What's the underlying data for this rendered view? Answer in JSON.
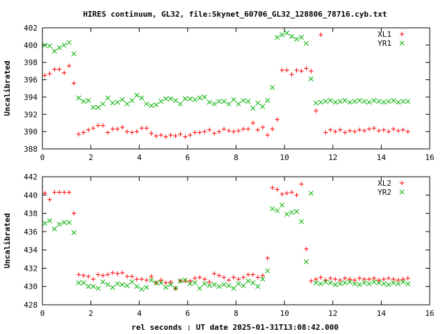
{
  "title": "HIRES continuum, GL32, file:Skynet_60706_GL32_128806_78716.cyb.txt",
  "xlabel": "rel seconds : UT date 2025-01-31T13:08:42.000",
  "colors": {
    "red": "#ff0000",
    "green": "#00b000",
    "frame": "#000000"
  },
  "chart_data": [
    {
      "type": "scatter",
      "ylabel": "Uncalibrated",
      "xlim": [
        0,
        16
      ],
      "ylim": [
        388,
        402
      ],
      "xticks": [
        0,
        2,
        4,
        6,
        8,
        10,
        12,
        14,
        16
      ],
      "yticks": [
        388,
        390,
        392,
        394,
        396,
        398,
        400,
        402
      ],
      "legend_position": "top-right",
      "series": [
        {
          "name": "XL1",
          "marker": "plus",
          "color": "#ff0000",
          "x": [
            0.1,
            0.3,
            0.5,
            0.7,
            0.9,
            1.1,
            1.3,
            1.5,
            1.7,
            1.9,
            2.1,
            2.3,
            2.5,
            2.7,
            2.9,
            3.1,
            3.3,
            3.5,
            3.7,
            3.9,
            4.1,
            4.3,
            4.5,
            4.7,
            4.9,
            5.1,
            5.3,
            5.5,
            5.7,
            5.9,
            6.1,
            6.3,
            6.5,
            6.7,
            6.9,
            7.1,
            7.3,
            7.5,
            7.7,
            7.9,
            8.1,
            8.3,
            8.5,
            8.7,
            8.9,
            9.1,
            9.3,
            9.5,
            9.7,
            9.9,
            10.1,
            10.3,
            10.5,
            10.7,
            10.9,
            11.1,
            11.3,
            11.5,
            11.7,
            11.9,
            12.1,
            12.3,
            12.5,
            12.7,
            12.9,
            13.1,
            13.3,
            13.5,
            13.7,
            13.9,
            14.1,
            14.3,
            14.5,
            14.7,
            14.9,
            15.1
          ],
          "y": [
            396.5,
            396.7,
            397.2,
            397.2,
            396.8,
            397.6,
            395.6,
            389.7,
            389.9,
            390.2,
            390.4,
            390.7,
            390.7,
            389.9,
            390.3,
            390.3,
            390.5,
            390.0,
            389.9,
            390.0,
            390.4,
            390.4,
            389.8,
            389.5,
            389.6,
            389.4,
            389.6,
            389.5,
            389.7,
            389.4,
            389.6,
            389.9,
            389.9,
            390.0,
            390.2,
            389.8,
            390.0,
            390.3,
            390.1,
            390.0,
            390.1,
            390.3,
            390.3,
            391.0,
            390.2,
            390.5,
            389.6,
            390.3,
            391.4,
            397.1,
            397.1,
            396.6,
            397.1,
            397.0,
            397.3,
            397.0,
            392.4,
            401.2,
            389.9,
            390.2,
            390.0,
            390.2,
            389.9,
            390.1,
            390.0,
            390.2,
            390.1,
            390.3,
            390.4,
            390.1,
            390.2,
            390.0,
            390.3,
            390.1,
            390.2,
            390.0
          ]
        },
        {
          "name": "YR1",
          "marker": "x",
          "color": "#00b000",
          "x": [
            0.1,
            0.3,
            0.5,
            0.7,
            0.9,
            1.1,
            1.3,
            1.5,
            1.7,
            1.9,
            2.1,
            2.3,
            2.5,
            2.7,
            2.9,
            3.1,
            3.3,
            3.5,
            3.7,
            3.9,
            4.1,
            4.3,
            4.5,
            4.7,
            4.9,
            5.1,
            5.3,
            5.5,
            5.7,
            5.9,
            6.1,
            6.3,
            6.5,
            6.7,
            6.9,
            7.1,
            7.3,
            7.5,
            7.7,
            7.9,
            8.1,
            8.3,
            8.5,
            8.7,
            8.9,
            9.1,
            9.3,
            9.5,
            9.7,
            9.9,
            10.1,
            10.3,
            10.5,
            10.7,
            10.9,
            11.1,
            11.3,
            11.5,
            11.7,
            11.9,
            12.1,
            12.3,
            12.5,
            12.7,
            12.9,
            13.1,
            13.3,
            13.5,
            13.7,
            13.9,
            14.1,
            14.3,
            14.5,
            14.7,
            14.9,
            15.1
          ],
          "y": [
            400.0,
            399.9,
            399.3,
            399.7,
            400.0,
            400.3,
            399.0,
            393.9,
            393.5,
            393.6,
            392.8,
            392.8,
            393.2,
            393.9,
            393.3,
            393.4,
            393.7,
            393.2,
            393.6,
            394.2,
            393.9,
            393.2,
            393.0,
            393.1,
            393.5,
            393.8,
            393.8,
            393.6,
            393.2,
            393.8,
            393.8,
            393.7,
            393.9,
            394.0,
            393.4,
            393.2,
            393.5,
            393.5,
            393.2,
            393.7,
            393.2,
            393.6,
            393.5,
            392.7,
            393.3,
            392.9,
            393.6,
            395.1,
            400.9,
            401.2,
            401.4,
            401.0,
            400.7,
            400.9,
            400.2,
            396.1,
            393.3,
            393.4,
            393.5,
            393.6,
            393.4,
            393.5,
            393.6,
            393.4,
            393.5,
            393.6,
            393.5,
            393.4,
            393.6,
            393.5,
            393.4,
            393.5,
            393.6,
            393.4,
            393.5,
            393.5
          ]
        }
      ]
    },
    {
      "type": "scatter",
      "ylabel": "Uncalibrated",
      "xlim": [
        0,
        16
      ],
      "ylim": [
        428,
        442
      ],
      "xticks": [
        0,
        2,
        4,
        6,
        8,
        10,
        12,
        14,
        16
      ],
      "yticks": [
        428,
        430,
        432,
        434,
        436,
        438,
        440,
        442
      ],
      "legend_position": "top-right",
      "series": [
        {
          "name": "XL2",
          "marker": "plus",
          "color": "#ff0000",
          "x": [
            0.1,
            0.3,
            0.5,
            0.7,
            0.9,
            1.1,
            1.3,
            1.5,
            1.7,
            1.9,
            2.1,
            2.3,
            2.5,
            2.7,
            2.9,
            3.1,
            3.3,
            3.5,
            3.7,
            3.9,
            4.1,
            4.3,
            4.5,
            4.7,
            4.9,
            5.1,
            5.3,
            5.5,
            5.7,
            5.9,
            6.1,
            6.3,
            6.5,
            6.7,
            6.9,
            7.1,
            7.3,
            7.5,
            7.7,
            7.9,
            8.1,
            8.3,
            8.5,
            8.7,
            8.9,
            9.1,
            9.3,
            9.5,
            9.7,
            9.9,
            10.1,
            10.3,
            10.5,
            10.7,
            10.9,
            11.1,
            11.3,
            11.5,
            11.7,
            11.9,
            12.1,
            12.3,
            12.5,
            12.7,
            12.9,
            13.1,
            13.3,
            13.5,
            13.7,
            13.9,
            14.1,
            14.3,
            14.5,
            14.7,
            14.9,
            15.1
          ],
          "y": [
            440.2,
            439.5,
            440.3,
            440.3,
            440.3,
            440.3,
            438.0,
            431.3,
            431.2,
            431.1,
            430.8,
            431.3,
            431.2,
            431.3,
            431.5,
            431.4,
            431.5,
            431.1,
            431.1,
            430.8,
            430.8,
            430.7,
            431.1,
            430.4,
            430.7,
            430.4,
            430.5,
            429.8,
            430.6,
            430.6,
            430.6,
            430.9,
            431.0,
            430.8,
            430.5,
            431.4,
            431.2,
            431.0,
            430.7,
            431.0,
            430.8,
            431.0,
            431.3,
            431.3,
            431.0,
            431.2,
            433.1,
            440.8,
            440.6,
            440.1,
            440.2,
            440.3,
            440.0,
            441.2,
            434.1,
            430.6,
            430.8,
            431.0,
            430.7,
            430.9,
            430.8,
            430.7,
            430.9,
            430.8,
            430.7,
            430.9,
            430.8,
            430.8,
            430.9,
            430.7,
            430.8,
            430.9,
            430.8,
            430.7,
            430.8,
            430.9
          ]
        },
        {
          "name": "YR2",
          "marker": "x",
          "color": "#00b000",
          "x": [
            0.1,
            0.3,
            0.5,
            0.7,
            0.9,
            1.1,
            1.3,
            1.5,
            1.7,
            1.9,
            2.1,
            2.3,
            2.5,
            2.7,
            2.9,
            3.1,
            3.3,
            3.5,
            3.7,
            3.9,
            4.1,
            4.3,
            4.5,
            4.7,
            4.9,
            5.1,
            5.3,
            5.5,
            5.7,
            5.9,
            6.1,
            6.3,
            6.5,
            6.7,
            6.9,
            7.1,
            7.3,
            7.5,
            7.7,
            7.9,
            8.1,
            8.3,
            8.5,
            8.7,
            8.9,
            9.1,
            9.3,
            9.5,
            9.7,
            9.9,
            10.1,
            10.3,
            10.5,
            10.7,
            10.9,
            11.1,
            11.3,
            11.5,
            11.7,
            11.9,
            12.1,
            12.3,
            12.5,
            12.7,
            12.9,
            13.1,
            13.3,
            13.5,
            13.7,
            13.9,
            14.1,
            14.3,
            14.5,
            14.7,
            14.9,
            15.1
          ],
          "y": [
            436.9,
            437.2,
            436.3,
            436.8,
            437.0,
            437.0,
            435.9,
            430.4,
            430.4,
            430.0,
            430.0,
            429.8,
            430.5,
            430.2,
            429.9,
            430.3,
            430.2,
            430.1,
            430.5,
            430.0,
            429.7,
            429.9,
            430.7,
            430.4,
            430.4,
            429.9,
            430.2,
            429.8,
            430.6,
            430.7,
            430.3,
            430.4,
            429.8,
            430.3,
            430.1,
            430.2,
            430.0,
            430.2,
            430.1,
            429.8,
            430.3,
            430.1,
            430.6,
            430.4,
            430.0,
            430.8,
            431.7,
            438.5,
            438.3,
            438.9,
            437.9,
            438.1,
            438.2,
            437.1,
            432.7,
            440.2,
            430.4,
            430.3,
            430.5,
            430.4,
            430.2,
            430.3,
            430.4,
            430.5,
            430.3,
            430.2,
            430.4,
            430.3,
            430.5,
            430.4,
            430.3,
            430.2,
            430.4,
            430.3,
            430.5,
            430.3
          ]
        }
      ]
    }
  ]
}
